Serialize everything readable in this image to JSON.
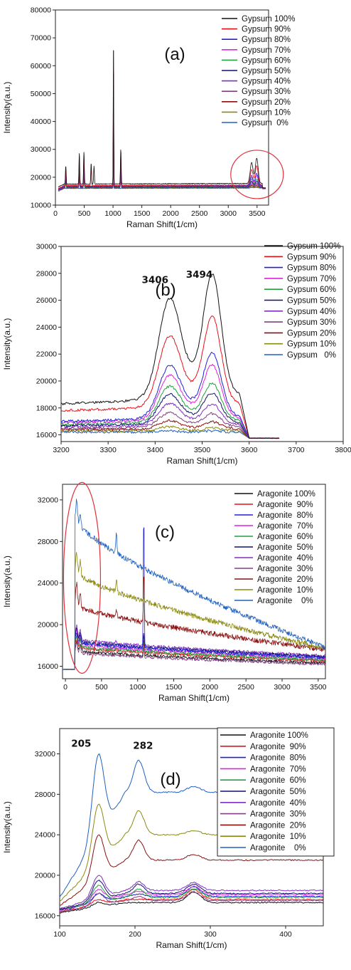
{
  "chart_data": [
    {
      "type": "line",
      "panel_label": "(a)",
      "xlabel": "Raman Shift(1/cm)",
      "ylabel": "Intensity(a.u.)",
      "xlim": [
        0,
        3700
      ],
      "ylim": [
        10000,
        80000
      ],
      "xticks": [
        "0",
        "500",
        "1000",
        "1500",
        "2000",
        "2500",
        "3000",
        "3500"
      ],
      "yticks": [
        "10000",
        "20000",
        "30000",
        "40000",
        "50000",
        "60000",
        "70000",
        "80000"
      ],
      "legend_position": "right",
      "annotations": [
        {
          "type": "circle",
          "x": 3500,
          "y": 21000
        }
      ],
      "series": [
        {
          "name": "Gypsum 100%",
          "color": "#111111",
          "baseline_start": 17500,
          "baseline_end": 17800,
          "peaks": [
            [
              180,
              24000
            ],
            [
              415,
              28500
            ],
            [
              495,
              29000
            ],
            [
              620,
              25000
            ],
            [
              670,
              24000
            ],
            [
              1008,
              71000
            ],
            [
              1135,
              30000
            ],
            [
              3406,
              25000
            ],
            [
              3494,
              26500
            ]
          ]
        },
        {
          "name": "Gypsum 90%",
          "color": "#e8101a",
          "baseline_start": 17000,
          "baseline_end": 17200,
          "peaks": [
            [
              180,
              22500
            ],
            [
              415,
              26000
            ],
            [
              495,
              26500
            ],
            [
              620,
              23500
            ],
            [
              1008,
              62000
            ],
            [
              1135,
              27500
            ],
            [
              3406,
              22500
            ],
            [
              3494,
              24000
            ]
          ]
        },
        {
          "name": "Gypsum 80%",
          "color": "#2020d8",
          "baseline_start": 16800,
          "baseline_end": 16900,
          "peaks": [
            [
              180,
              21500
            ],
            [
              415,
              24000
            ],
            [
              495,
              24500
            ],
            [
              1008,
              52000
            ],
            [
              1135,
              25000
            ],
            [
              3406,
              20500
            ],
            [
              3494,
              21300
            ]
          ]
        },
        {
          "name": "Gypsum 70%",
          "color": "#e020e0",
          "baseline_start": 16700,
          "baseline_end": 16800,
          "peaks": [
            [
              180,
              21000
            ],
            [
              415,
              23000
            ],
            [
              495,
              23500
            ],
            [
              1008,
              47000
            ],
            [
              1135,
              24000
            ],
            [
              3406,
              19800
            ],
            [
              3494,
              20500
            ]
          ]
        },
        {
          "name": "Gypsum 60%",
          "color": "#20a040",
          "baseline_start": 16600,
          "baseline_end": 16700,
          "peaks": [
            [
              180,
              20500
            ],
            [
              415,
              22000
            ],
            [
              495,
              22500
            ],
            [
              1008,
              43000
            ],
            [
              1135,
              23000
            ],
            [
              3406,
              19200
            ],
            [
              3494,
              19300
            ]
          ]
        },
        {
          "name": "Gypsum 50%",
          "color": "#101070",
          "baseline_start": 16500,
          "baseline_end": 16600,
          "peaks": [
            [
              180,
              20000
            ],
            [
              415,
              21000
            ],
            [
              495,
              21500
            ],
            [
              1008,
              39000
            ],
            [
              1135,
              22000
            ],
            [
              3406,
              18500
            ],
            [
              3494,
              18600
            ]
          ]
        },
        {
          "name": "Gypsum 40%",
          "color": "#8030c0",
          "baseline_start": 16400,
          "baseline_end": 16500,
          "peaks": [
            [
              180,
              19500
            ],
            [
              415,
              20500
            ],
            [
              495,
              20800
            ],
            [
              1008,
              35000
            ],
            [
              1135,
              21000
            ],
            [
              3406,
              18000
            ],
            [
              3494,
              18000
            ]
          ]
        },
        {
          "name": "Gypsum 30%",
          "color": "#804080",
          "baseline_start": 16300,
          "baseline_end": 16400,
          "peaks": [
            [
              180,
              19000
            ],
            [
              415,
              19800
            ],
            [
              495,
              20000
            ],
            [
              1008,
              31000
            ],
            [
              1135,
              20000
            ],
            [
              3406,
              17500
            ],
            [
              3494,
              17500
            ]
          ]
        },
        {
          "name": "Gypsum 20%",
          "color": "#8a1010",
          "baseline_start": 16200,
          "baseline_end": 16300,
          "peaks": [
            [
              180,
              18500
            ],
            [
              415,
              19000
            ],
            [
              495,
              19300
            ],
            [
              1008,
              27000
            ],
            [
              1135,
              19000
            ],
            [
              3406,
              17000
            ],
            [
              3494,
              17000
            ]
          ]
        },
        {
          "name": "Gypsum 10%",
          "color": "#8a8a10",
          "baseline_start": 16100,
          "baseline_end": 16200,
          "peaks": [
            [
              180,
              18000
            ],
            [
              415,
              18500
            ],
            [
              495,
              18700
            ],
            [
              1008,
              23000
            ],
            [
              1135,
              18300
            ],
            [
              3406,
              16600
            ],
            [
              3494,
              16600
            ]
          ]
        },
        {
          "name": "Gypsum  0%",
          "color": "#2060c0",
          "baseline_start": 16000,
          "baseline_end": 16100,
          "peaks": [
            [
              1008,
              18000
            ],
            [
              3406,
              16300
            ],
            [
              3494,
              16300
            ]
          ]
        }
      ]
    },
    {
      "type": "line",
      "panel_label": "(b)",
      "xlabel": "Raman Shift(1/cm)",
      "ylabel": "Intensity(a.u.)",
      "xlim": [
        3200,
        3800
      ],
      "ylim": [
        15500,
        30000
      ],
      "xticks": [
        "3200",
        "3300",
        "3400",
        "3500",
        "3600",
        "3700",
        "3800"
      ],
      "yticks": [
        "16000",
        "18000",
        "20000",
        "22000",
        "24000",
        "26000",
        "28000",
        "30000"
      ],
      "legend_position": "top-right",
      "annotations": [
        {
          "text": "3406",
          "x": 3406,
          "y": 25000
        },
        {
          "text": "3494",
          "x": 3494,
          "y": 26500
        }
      ],
      "series": [
        {
          "name": "Gypsum 100%",
          "color": "#111111",
          "base": 18300,
          "p1": 25000,
          "p2": 26500,
          "mid": 20800
        },
        {
          "name": "Gypsum 90%",
          "color": "#e8101a",
          "base": 17800,
          "p1": 22600,
          "p2": 23800,
          "mid": 19500
        },
        {
          "name": "Gypsum 80%",
          "color": "#2020d8",
          "base": 17000,
          "p1": 20500,
          "p2": 21300,
          "mid": 18400
        },
        {
          "name": "Gypsum 70%",
          "color": "#e020e0",
          "base": 16900,
          "p1": 19900,
          "p2": 20500,
          "mid": 18100
        },
        {
          "name": "Gypsum 60%",
          "color": "#20a040",
          "base": 16800,
          "p1": 19200,
          "p2": 19300,
          "mid": 17700
        },
        {
          "name": "Gypsum 50%",
          "color": "#101070",
          "base": 16700,
          "p1": 18700,
          "p2": 18700,
          "mid": 17400
        },
        {
          "name": "Gypsum 40%",
          "color": "#8030c0",
          "base": 16600,
          "p1": 18100,
          "p2": 18000,
          "mid": 17100
        },
        {
          "name": "Gypsum 30%",
          "color": "#804080",
          "base": 16500,
          "p1": 17500,
          "p2": 17400,
          "mid": 16800
        },
        {
          "name": "Gypsum 20%",
          "color": "#8a1010",
          "base": 16400,
          "p1": 17000,
          "p2": 16900,
          "mid": 16500
        },
        {
          "name": "Gypsum 10%",
          "color": "#8a8a10",
          "base": 16300,
          "p1": 16600,
          "p2": 16500,
          "mid": 16300
        },
        {
          "name": "Gypsum   0%",
          "color": "#2060c0",
          "base": 16200,
          "p1": 16300,
          "p2": 16300,
          "mid": 16200
        }
      ]
    },
    {
      "type": "line",
      "panel_label": "(c)",
      "xlabel": "Raman Shift(1/cm)",
      "ylabel": "Intensity(a.u.)",
      "xlim": [
        -40,
        3600
      ],
      "ylim": [
        14800,
        33500
      ],
      "xticks": [
        "0",
        "500",
        "1000",
        "1500",
        "2000",
        "2500",
        "3000",
        "3500"
      ],
      "yticks": [
        "16000",
        "20000",
        "24000",
        "28000",
        "32000"
      ],
      "legend_position": "top-right",
      "annotations": [
        {
          "type": "ellipse",
          "x": 230,
          "y": 24500
        }
      ],
      "series": [
        {
          "name": "Aragonite 100%",
          "color": "#111111",
          "plateau": 17500,
          "end": 16300,
          "p205": 18400,
          "p1085": 17900
        },
        {
          "name": "Aragonite  90%",
          "color": "#e8101a",
          "plateau": 17800,
          "end": 16500,
          "p205": 18900,
          "p1085": 18200
        },
        {
          "name": "Aragonite  80%",
          "color": "#2020d8",
          "plateau": 18300,
          "end": 16800,
          "p205": 19300,
          "p1085": 31000
        },
        {
          "name": "Aragonite  70%",
          "color": "#e020e0",
          "plateau": 18100,
          "end": 16700,
          "p205": 19500,
          "p1085": 18600
        },
        {
          "name": "Aragonite  60%",
          "color": "#20a040",
          "plateau": 17900,
          "end": 16600,
          "p205": 19000,
          "p1085": 18400
        },
        {
          "name": "Aragonite  50%",
          "color": "#101070",
          "plateau": 18400,
          "end": 16900,
          "p205": 19800,
          "p1085": 19000
        },
        {
          "name": "Aragonite  40%",
          "color": "#8030c0",
          "plateau": 18600,
          "end": 17000,
          "p205": 20000,
          "p1085": 19200
        },
        {
          "name": "Aragonite  30%",
          "color": "#804080",
          "plateau": 17300,
          "end": 16200,
          "p205": 18200,
          "p1085": 17700
        },
        {
          "name": "Aragonite  20%",
          "color": "#8a1010",
          "plateau": 21800,
          "end": 17600,
          "p205": 24000,
          "p1085": 25000
        },
        {
          "name": "Aragonite  10%",
          "color": "#8a8a10",
          "plateau": 25000,
          "end": 17700,
          "p205": 27000,
          "p1085": 22500
        },
        {
          "name": "Aragonite    0%",
          "color": "#2060c0",
          "plateau": 30000,
          "end": 17800,
          "p205": 32000,
          "p1085": 25500
        }
      ]
    },
    {
      "type": "line",
      "panel_label": "(d)",
      "xlabel": "Raman Shift(1/cm)",
      "ylabel": "Intensity(a.u.)",
      "xlim": [
        100,
        450
      ],
      "ylim": [
        15000,
        34500
      ],
      "xticks": [
        "100",
        "200",
        "300",
        "400"
      ],
      "yticks": [
        "16000",
        "20000",
        "24000",
        "28000",
        "32000"
      ],
      "legend_position": "top-right",
      "annotations": [
        {
          "text": "205",
          "x": 155,
          "y": 32000
        },
        {
          "text": "282",
          "x": 205,
          "y": 31800
        }
      ],
      "series": [
        {
          "name": "Aragonite 100%",
          "color": "#111111",
          "start": 16300,
          "p1": 17300,
          "p2": 17300,
          "p3": 18800,
          "end": 17300
        },
        {
          "name": "Aragonite  90%",
          "color": "#e8101a",
          "start": 16400,
          "p1": 17600,
          "p2": 17600,
          "p3": 19000,
          "end": 17600
        },
        {
          "name": "Aragonite  80%",
          "color": "#2020d8",
          "start": 16500,
          "p1": 18200,
          "p2": 18200,
          "p3": 19300,
          "end": 17900
        },
        {
          "name": "Aragonite  70%",
          "color": "#e020e0",
          "start": 16500,
          "p1": 18600,
          "p2": 18500,
          "p3": 19200,
          "end": 18100
        },
        {
          "name": "Aragonite  60%",
          "color": "#20a040",
          "start": 16600,
          "p1": 19000,
          "p2": 18800,
          "p3": 19100,
          "end": 17800
        },
        {
          "name": "Aragonite  50%",
          "color": "#101070",
          "start": 16600,
          "p1": 19500,
          "p2": 19300,
          "p3": 19500,
          "end": 18200
        },
        {
          "name": "Aragonite  40%",
          "color": "#8030c0",
          "start": 16700,
          "p1": 20000,
          "p2": 19500,
          "p3": 19600,
          "end": 18500
        },
        {
          "name": "Aragonite  30%",
          "color": "#804080",
          "start": 16400,
          "p1": 18200,
          "p2": 18000,
          "p3": 18700,
          "end": 17500
        },
        {
          "name": "Aragonite  20%",
          "color": "#8a1010",
          "start": 17000,
          "p1": 24000,
          "p2": 23800,
          "p3": 22300,
          "end": 21500
        },
        {
          "name": "Aragonite  10%",
          "color": "#8a8a10",
          "start": 17400,
          "p1": 27000,
          "p2": 26800,
          "p3": 24600,
          "end": 24000
        },
        {
          "name": "Aragonite    0%",
          "color": "#2060c0",
          "start": 17800,
          "p1": 32000,
          "p2": 31900,
          "p3": 29000,
          "end": 28200
        }
      ]
    }
  ]
}
